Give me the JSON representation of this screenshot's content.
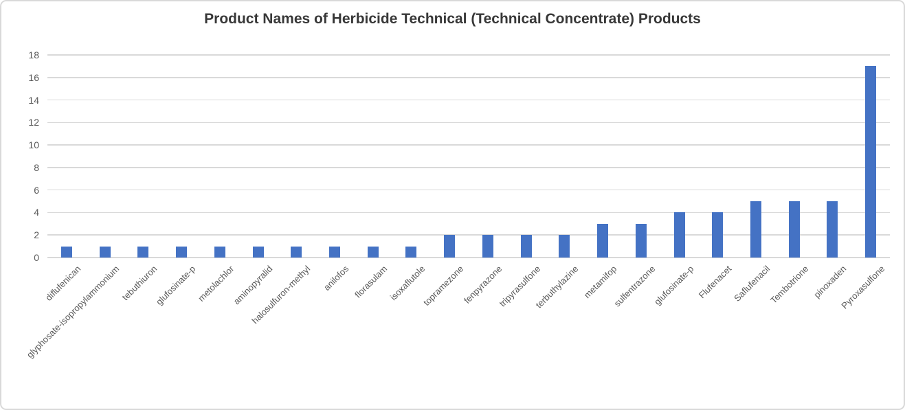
{
  "colors": {
    "bar": "#4472C4",
    "gridline": "#D9D9D9",
    "axis_label": "#595959",
    "title_text": "#383838",
    "card_border": "#D9D9D9",
    "background": "#FFFFFF"
  },
  "chart_data": {
    "type": "bar",
    "title": "Product Names of Herbicide Technical (Technical Concentrate) Products",
    "categories": [
      "diflufenican",
      "glyphosate-isopropylammonium",
      "tebuthiuron",
      "glufosinate-p",
      "metolachlor",
      "aminopyralid",
      "halosulfuron-methyl",
      "anilofos",
      "florasulam",
      "isoxaflutole",
      "topramezone",
      "fenpyrazone",
      "tripyrasulfone",
      "terbuthylazine",
      "metamifop",
      "sulfentrazone",
      "glufosinate-p",
      "Flufenacet",
      "Saflufenacil",
      "Tembotrione",
      "pinoxaden",
      "Pyroxasulfone"
    ],
    "values": [
      1,
      1,
      1,
      1,
      1,
      1,
      1,
      1,
      1,
      1,
      2,
      2,
      2,
      2,
      3,
      3,
      4,
      4,
      5,
      5,
      5,
      17
    ],
    "xlabel": "",
    "ylabel": "",
    "ylim": [
      0,
      18
    ],
    "yticks": [
      0,
      2,
      4,
      6,
      8,
      10,
      12,
      14,
      16,
      18
    ],
    "grid": true,
    "legend": false,
    "bar_color": "#4472C4"
  }
}
